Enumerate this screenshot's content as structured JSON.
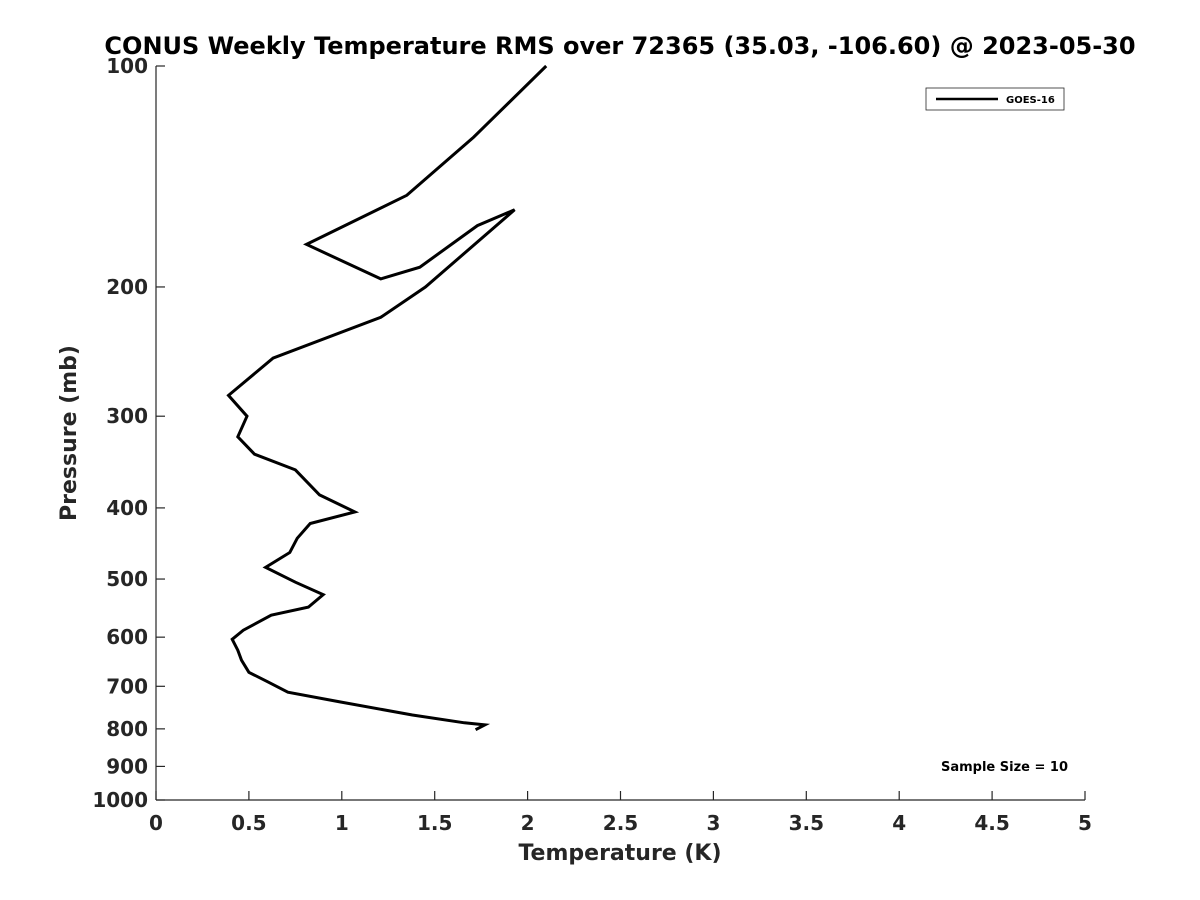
{
  "chart_data": {
    "type": "line",
    "title": "CONUS Weekly Temperature RMS over 72365 (35.03, -106.60) @ 2023-05-30",
    "xlabel": "Temperature (K)",
    "ylabel": "Pressure (mb)",
    "xlim": [
      0,
      5
    ],
    "ylim": [
      100,
      1000
    ],
    "y_scale": "log",
    "y_reversed": true,
    "xticks": [
      0,
      0.5,
      1,
      1.5,
      2,
      2.5,
      3,
      3.5,
      4,
      4.5,
      5
    ],
    "xtick_labels": [
      "0",
      "0.5",
      "1",
      "1.5",
      "2",
      "2.5",
      "3",
      "3.5",
      "4",
      "4.5",
      "5"
    ],
    "yticks": [
      100,
      200,
      300,
      400,
      500,
      600,
      700,
      800,
      900,
      1000
    ],
    "ytick_labels": [
      "100",
      "200",
      "300",
      "400",
      "500",
      "600",
      "700",
      "800",
      "900",
      "1000"
    ],
    "grid": false,
    "legend_position": "top-right",
    "annotation": "Sample Size = 10",
    "series": [
      {
        "name": "GOES-16",
        "color": "#000000",
        "x": [
          2.1,
          1.71,
          1.35,
          0.81,
          1.21,
          1.42,
          1.73,
          1.93,
          1.45,
          1.21,
          0.63,
          0.39,
          0.49,
          0.44,
          0.53,
          0.75,
          0.88,
          1.07,
          0.83,
          0.76,
          0.72,
          0.59,
          0.75,
          0.9,
          0.82,
          0.62,
          0.47,
          0.41,
          0.44,
          0.46,
          0.5,
          0.6,
          0.71,
          0.99,
          1.38,
          1.66,
          1.77,
          1.72
        ],
        "y": [
          100,
          125,
          150,
          175,
          195,
          188,
          165,
          157,
          200,
          220,
          250,
          281,
          300,
          320,
          338,
          355,
          384,
          405,
          420,
          440,
          460,
          482,
          505,
          525,
          546,
          560,
          587,
          604,
          625,
          645,
          670,
          690,
          713,
          735,
          766,
          785,
          790,
          802
        ]
      }
    ]
  }
}
